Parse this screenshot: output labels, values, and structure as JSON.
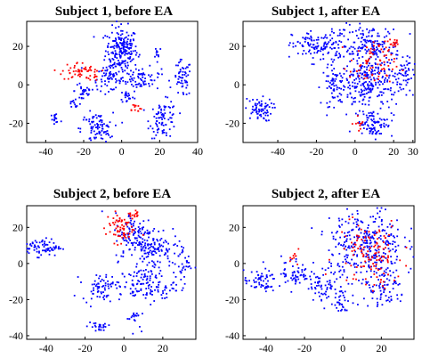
{
  "chart_data": [
    {
      "type": "scatter",
      "title": "Subject 1, before EA",
      "xlim": [
        -50,
        40
      ],
      "ylim": [
        -30,
        33
      ],
      "xticks": [
        -40,
        -20,
        0,
        20,
        40
      ],
      "yticks": [
        -20,
        0,
        20
      ],
      "grid": false,
      "series": [
        {
          "color": "#0000ff",
          "clusters": [
            {
              "cx": 0,
              "cy": 18,
              "rx": 7,
              "ry": 10,
              "n": 210
            },
            {
              "cx": 10,
              "cy": 3,
              "rx": 9,
              "ry": 5,
              "n": 70
            },
            {
              "cx": -7,
              "cy": 3,
              "rx": 7,
              "ry": 5,
              "n": 60
            },
            {
              "cx": -20,
              "cy": -3,
              "rx": 4,
              "ry": 6,
              "n": 30
            },
            {
              "cx": 32,
              "cy": 3,
              "rx": 4,
              "ry": 8,
              "n": 55
            },
            {
              "cx": 22,
              "cy": -18,
              "rx": 6,
              "ry": 8,
              "n": 85
            },
            {
              "cx": -13,
              "cy": -23,
              "rx": 7,
              "ry": 7,
              "n": 95
            },
            {
              "cx": -35,
              "cy": -18,
              "rx": 3,
              "ry": 4,
              "n": 18
            },
            {
              "cx": -25,
              "cy": -10,
              "rx": 3,
              "ry": 3,
              "n": 12
            },
            {
              "cx": 3,
              "cy": -6,
              "rx": 3,
              "ry": 3,
              "n": 18
            },
            {
              "cx": 19,
              "cy": 17,
              "rx": 2,
              "ry": 3,
              "n": 10
            }
          ]
        },
        {
          "color": "#ff0000",
          "clusters": [
            {
              "cx": -23,
              "cy": 7,
              "rx": 7,
              "ry": 4,
              "n": 45
            },
            {
              "cx": -14,
              "cy": 6,
              "rx": 3,
              "ry": 3,
              "n": 15
            },
            {
              "cx": 7,
              "cy": -12,
              "rx": 3,
              "ry": 2,
              "n": 12
            }
          ]
        }
      ]
    },
    {
      "type": "scatter",
      "title": "Subject 1, after EA",
      "xlim": [
        -58,
        31
      ],
      "ylim": [
        -30,
        33
      ],
      "xticks": [
        -40,
        -20,
        0,
        20,
        30
      ],
      "yticks": [
        -20,
        0,
        20
      ],
      "grid": false,
      "series": [
        {
          "color": "#0000ff",
          "clusters": [
            {
              "cx": -50,
              "cy": -13,
              "rx": 6,
              "ry": 5,
              "n": 70
            },
            {
              "cx": -18,
              "cy": 20,
              "rx": 12,
              "ry": 7,
              "n": 130
            },
            {
              "cx": 8,
              "cy": 20,
              "rx": 13,
              "ry": 9,
              "n": 160
            },
            {
              "cx": -10,
              "cy": 0,
              "rx": 6,
              "ry": 9,
              "n": 70
            },
            {
              "cx": 7,
              "cy": 0,
              "rx": 12,
              "ry": 12,
              "n": 230
            },
            {
              "cx": 10,
              "cy": -20,
              "rx": 8,
              "ry": 6,
              "n": 80
            },
            {
              "cx": 25,
              "cy": 5,
              "rx": 5,
              "ry": 8,
              "n": 50
            }
          ]
        },
        {
          "color": "#ff0000",
          "clusters": [
            {
              "cx": 9,
              "cy": 10,
              "rx": 10,
              "ry": 10,
              "n": 70
            },
            {
              "cx": 20,
              "cy": 22,
              "rx": 4,
              "ry": 3,
              "n": 15
            },
            {
              "cx": 3,
              "cy": -20,
              "rx": 3,
              "ry": 3,
              "n": 10
            }
          ]
        }
      ]
    },
    {
      "type": "scatter",
      "title": "Subject 2, before EA",
      "xlim": [
        -50,
        37
      ],
      "ylim": [
        -42,
        32
      ],
      "xticks": [
        -40,
        -20,
        0,
        20
      ],
      "yticks": [
        -40,
        -20,
        0,
        20
      ],
      "grid": false,
      "series": [
        {
          "color": "#0000ff",
          "clusters": [
            {
              "cx": -42,
              "cy": 9,
              "rx": 8,
              "ry": 4,
              "n": 80
            },
            {
              "cx": 5,
              "cy": 15,
              "rx": 8,
              "ry": 11,
              "n": 110
            },
            {
              "cx": 15,
              "cy": 9,
              "rx": 8,
              "ry": 10,
              "n": 110
            },
            {
              "cx": -12,
              "cy": -13,
              "rx": 8,
              "ry": 6,
              "n": 70
            },
            {
              "cx": 12,
              "cy": -12,
              "rx": 12,
              "ry": 8,
              "n": 120
            },
            {
              "cx": 30,
              "cy": 0,
              "rx": 4,
              "ry": 9,
              "n": 40
            },
            {
              "cx": -13,
              "cy": -35,
              "rx": 5,
              "ry": 3,
              "n": 25
            },
            {
              "cx": 5,
              "cy": -30,
              "rx": 3,
              "ry": 5,
              "n": 20
            }
          ]
        },
        {
          "color": "#ff0000",
          "clusters": [
            {
              "cx": -2,
              "cy": 20,
              "rx": 6,
              "ry": 7,
              "n": 65
            },
            {
              "cx": 5,
              "cy": 27,
              "rx": 4,
              "ry": 2,
              "n": 15
            }
          ]
        }
      ]
    },
    {
      "type": "scatter",
      "title": "Subject 2, after EA",
      "xlim": [
        -52,
        37
      ],
      "ylim": [
        -42,
        32
      ],
      "xticks": [
        -40,
        -20,
        0,
        20
      ],
      "yticks": [
        -40,
        -20,
        0,
        20
      ],
      "grid": false,
      "series": [
        {
          "color": "#0000ff",
          "clusters": [
            {
              "cx": -43,
              "cy": -10,
              "rx": 7,
              "ry": 5,
              "n": 60
            },
            {
              "cx": -25,
              "cy": -5,
              "rx": 6,
              "ry": 8,
              "n": 60
            },
            {
              "cx": -10,
              "cy": -12,
              "rx": 6,
              "ry": 7,
              "n": 60
            },
            {
              "cx": 0,
              "cy": -22,
              "rx": 5,
              "ry": 5,
              "n": 30
            },
            {
              "cx": 12,
              "cy": 10,
              "rx": 16,
              "ry": 18,
              "n": 330
            },
            {
              "cx": 22,
              "cy": -15,
              "rx": 9,
              "ry": 8,
              "n": 70
            }
          ]
        },
        {
          "color": "#ff0000",
          "clusters": [
            {
              "cx": 14,
              "cy": 5,
              "rx": 14,
              "ry": 16,
              "n": 120
            },
            {
              "cx": -25,
              "cy": 5,
              "rx": 3,
              "ry": 4,
              "n": 10
            }
          ]
        }
      ]
    }
  ]
}
